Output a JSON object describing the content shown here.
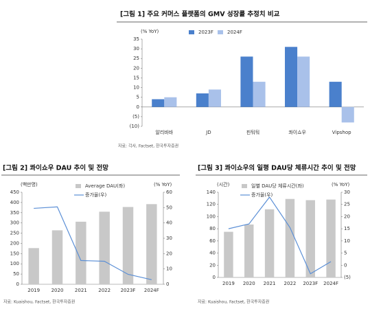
{
  "chart_data": [
    {
      "type": "bar",
      "title": "[그림 1] 주요 커머스 플랫폼의 GMV 성장률 추정치 비교",
      "y_label": "(% YoY)",
      "categories": [
        "알리바바",
        "JD",
        "핀둬둬",
        "콰이쇼우",
        "Vipshop"
      ],
      "series": [
        {
          "name": "2023F",
          "color": "#4a80cc",
          "values": [
            4,
            7,
            26,
            31,
            13
          ]
        },
        {
          "name": "2024F",
          "color": "#a9c1ea",
          "values": [
            5,
            9,
            13,
            26,
            -8
          ]
        }
      ],
      "ylim": [
        -10,
        35
      ],
      "yticks": [
        {
          "value": -10,
          "label": "(10)"
        },
        {
          "value": -5,
          "label": "(5)"
        },
        0,
        5,
        10,
        15,
        20,
        25,
        30,
        35
      ],
      "legend": "top",
      "source": "자료: 각사, Factset, 한국투자증권"
    },
    {
      "type": "combo",
      "title": "[그림 2] 콰이쇼우 DAU 추이 및 전망",
      "y_label": "(백만명)",
      "y2_label": "(% YoY)",
      "categories": [
        "2019",
        "2020",
        "2021",
        "2022",
        "2023F",
        "2024F"
      ],
      "series": [
        {
          "name": "Average DAU(좌)",
          "color": "#c8c8c8",
          "values": [
            177,
            264,
            306,
            355,
            378,
            392
          ]
        },
        {
          "name": "증가율(우)",
          "color": "#5b8fd6",
          "axis": "y2",
          "values": [
            49.5,
            50.5,
            15.5,
            15,
            6.5,
            3
          ]
        }
      ],
      "ylim": [
        0,
        450
      ],
      "yticks": [
        0,
        50,
        100,
        150,
        200,
        250,
        300,
        350,
        400,
        450
      ],
      "y2lim": [
        0,
        60
      ],
      "y2ticks": [
        0,
        10,
        20,
        30,
        40,
        50,
        60
      ],
      "legend": "top",
      "source": "자료: Kuaishou, Factset, 한국투자증권"
    },
    {
      "type": "combo",
      "title": "[그림 3] 콰이쇼우의 일평 DAU당 체류시간 추이 및 전망",
      "y_label": "(시간)",
      "y2_label": "(% YoY)",
      "categories": [
        "2019",
        "2020",
        "2021",
        "2022",
        "2023F",
        "2024F"
      ],
      "series": [
        {
          "name": "일별 DAU당 체류시간(좌)",
          "color": "#c8c8c8",
          "values": [
            75,
            87,
            112,
            129,
            127,
            128
          ]
        },
        {
          "name": "증가율(우)",
          "color": "#5b8fd6",
          "axis": "y2",
          "values": [
            15,
            17,
            28,
            15.5,
            -3.5,
            1.5
          ]
        }
      ],
      "ylim": [
        0,
        140
      ],
      "yticks": [
        0,
        20,
        40,
        60,
        80,
        100,
        120,
        140
      ],
      "y2lim": [
        -5,
        30
      ],
      "y2ticks": [
        {
          "value": -5,
          "label": "(5)"
        },
        0,
        5,
        10,
        15,
        20,
        25,
        30
      ],
      "legend": "top",
      "source": "자료: Kuaishou, Factset, 한국투자증권"
    }
  ]
}
